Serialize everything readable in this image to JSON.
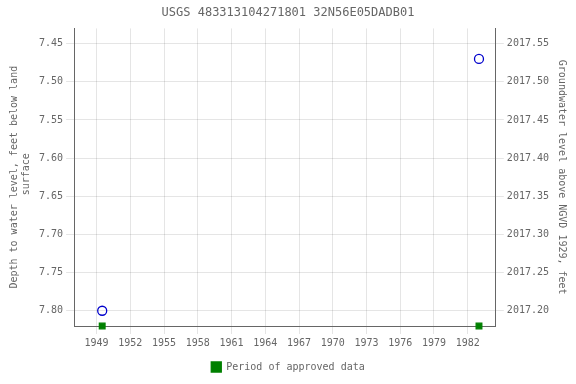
{
  "chart_data": {
    "type": "scatter",
    "title": "USGS 483313104271801 32N56E05DADB01",
    "y_label": "Depth to water level, feet below land\n surface",
    "y2_label": "Groundwater level above NGVD 1929, feet",
    "xlim": [
      1947.0,
      1984.5
    ],
    "xticks": [
      1949,
      1952,
      1955,
      1958,
      1961,
      1964,
      1967,
      1970,
      1973,
      1976,
      1979,
      1982
    ],
    "ylim": [
      7.82,
      7.43
    ],
    "yticks": [
      7.45,
      {
        "value": 7.5,
        "label": "7.50"
      },
      7.55,
      {
        "value": 7.6,
        "label": "7.60"
      },
      7.65,
      {
        "value": 7.7,
        "label": "7.70"
      },
      7.75,
      {
        "value": 7.8,
        "label": "7.80"
      }
    ],
    "y2lim": [
      2017.18,
      2017.57
    ],
    "y2ticks": [
      2017.55,
      {
        "value": 2017.5,
        "label": "2017.50"
      },
      2017.45,
      {
        "value": 2017.4,
        "label": "2017.40"
      },
      2017.35,
      {
        "value": 2017.3,
        "label": "2017.30"
      },
      2017.25,
      {
        "value": 2017.2,
        "label": "2017.20"
      }
    ],
    "grid": true,
    "legend": "bottom",
    "series": [
      {
        "x": [
          1949.5,
          1983.0
        ],
        "values": [
          7.8,
          7.47
        ],
        "color": "#0000cc",
        "marker": "hollow_circle"
      },
      {
        "name": "Period of approved data",
        "x": [
          1949.5,
          1983.0
        ],
        "values": [
          7.82,
          7.82
        ],
        "color": "#008000",
        "marker": "square"
      }
    ]
  }
}
